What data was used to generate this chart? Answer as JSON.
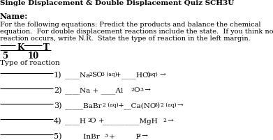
{
  "title": "Single Displacement & Double Displacement Quiz SCH3U",
  "name_label": "Name:",
  "instr1": "For the following equations: Predict the products and balance the chemical",
  "instr2": "equation.  For double displacement reactions include the state.  If you think no",
  "instr3": "reaction occurs, write N.R.  State the type of reaction in the left margin.",
  "score_k": "K",
  "score_t": "T",
  "score_k_val": "5",
  "score_t_val": "10",
  "type_label": "Type of reaction",
  "background": "#ffffff"
}
